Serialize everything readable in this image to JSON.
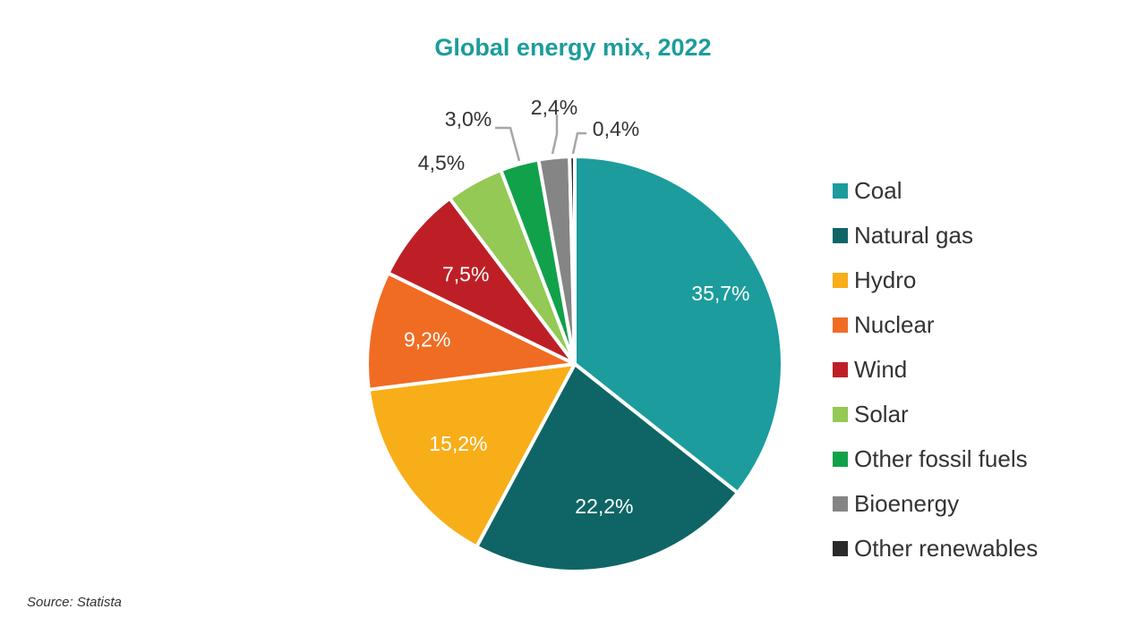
{
  "chart_data": {
    "type": "pie",
    "title": "Global energy mix, 2022",
    "slices": [
      {
        "label": "Coal",
        "value": 35.7,
        "value_label": "35,7%",
        "color": "#1c9c9c",
        "label_color": "#ffffff"
      },
      {
        "label": "Natural gas",
        "value": 22.2,
        "value_label": "22,2%",
        "color": "#0f6566",
        "label_color": "#ffffff"
      },
      {
        "label": "Hydro",
        "value": 15.2,
        "value_label": "15,2%",
        "color": "#f8ae19",
        "label_color": "#ffffff"
      },
      {
        "label": "Nuclear",
        "value": 9.2,
        "value_label": "9,2%",
        "color": "#f06c23",
        "label_color": "#ffffff"
      },
      {
        "label": "Wind",
        "value": 7.5,
        "value_label": "7,5%",
        "color": "#be1f26",
        "label_color": "#ffffff"
      },
      {
        "label": "Solar",
        "value": 4.5,
        "value_label": "4,5%",
        "color": "#93c954",
        "label_color": "#333333"
      },
      {
        "label": "Other fossil fuels",
        "value": 3.0,
        "value_label": "3,0%",
        "color": "#12a14b",
        "label_color": "#333333"
      },
      {
        "label": "Bioenergy",
        "value": 2.4,
        "value_label": "2,4%",
        "color": "#858585",
        "label_color": "#333333"
      },
      {
        "label": "Other renewables",
        "value": 0.4,
        "value_label": "0,4%",
        "color": "#2b2b2b",
        "label_color": "#333333"
      }
    ],
    "legend_position": "right",
    "source": "Source: Statista"
  }
}
